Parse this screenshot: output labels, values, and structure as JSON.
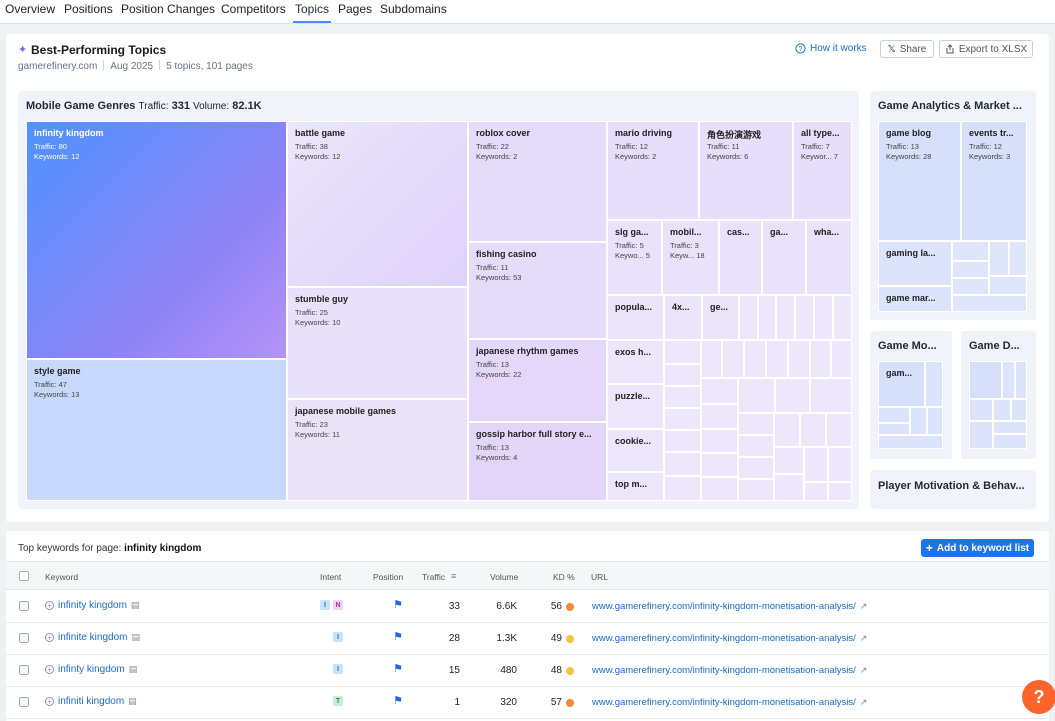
{
  "tabs": [
    "Overview",
    "Positions",
    "Position Changes",
    "Competitors",
    "Topics",
    "Pages",
    "Subdomains"
  ],
  "header": {
    "title": "Best-Performing Topics",
    "domain": "gamerefinery.com",
    "date": "Aug 2025",
    "summary": "5 topics, 101 pages",
    "how_label": "How it works",
    "share_label": "Share",
    "export_label": "Export to XLSX"
  },
  "main_panel": {
    "title": "Mobile Game Genres",
    "traffic_label": "Traffic:",
    "traffic": "331",
    "volume_label": "Volume:",
    "volume": "82.1K"
  },
  "treemap": [
    {
      "name": "infinity kingdom",
      "traffic": "Traffic: 80",
      "keywords": "Keywords: 12"
    },
    {
      "name": "style game",
      "traffic": "Traffic: 47",
      "keywords": "Keywords: 13"
    },
    {
      "name": "battle game",
      "traffic": "Traffic: 38",
      "keywords": "Keywords: 12"
    },
    {
      "name": "stumble guy",
      "traffic": "Traffic: 25",
      "keywords": "Keywords: 10"
    },
    {
      "name": "japanese mobile games",
      "traffic": "Traffic: 23",
      "keywords": "Keywords: 11"
    },
    {
      "name": "roblox cover",
      "traffic": "Traffic: 22",
      "keywords": "Keywords: 2"
    },
    {
      "name": "fishing casino",
      "traffic": "Traffic: 11",
      "keywords": "Keywords: 53"
    },
    {
      "name": "japanese rhythm games",
      "traffic": "Traffic: 13",
      "keywords": "Keywords: 22"
    },
    {
      "name": "gossip harbor full story e...",
      "traffic": "Traffic: 13",
      "keywords": "Keywords: 4"
    },
    {
      "name": "mario driving",
      "traffic": "Traffic: 12",
      "keywords": "Keywords: 2"
    },
    {
      "name": "角色扮演游戏",
      "traffic": "Traffic: 11",
      "keywords": "Keywords: 6"
    },
    {
      "name": "all type...",
      "traffic": "Traffic: 7",
      "keywords": "Keywor...  7"
    },
    {
      "name": "slg ga...",
      "traffic": "Traffic: 5",
      "keywords": "Keywo...  5"
    },
    {
      "name": "mobil...",
      "traffic": "Traffic: 3",
      "keywords": "Keyw...  18"
    },
    {
      "name": "cas...",
      "traffic": "",
      "keywords": ""
    },
    {
      "name": "ga...",
      "traffic": "",
      "keywords": ""
    },
    {
      "name": "wha...",
      "traffic": "",
      "keywords": ""
    },
    {
      "name": "popula...",
      "traffic": "",
      "keywords": ""
    },
    {
      "name": "4x...",
      "traffic": "",
      "keywords": ""
    },
    {
      "name": "ge...",
      "traffic": "",
      "keywords": ""
    },
    {
      "name": "exos h...",
      "traffic": "",
      "keywords": ""
    },
    {
      "name": "puzzle...",
      "traffic": "",
      "keywords": ""
    },
    {
      "name": "cookie...",
      "traffic": "",
      "keywords": ""
    },
    {
      "name": "top m...",
      "traffic": "",
      "keywords": ""
    }
  ],
  "side_panels": {
    "analytics": {
      "title": "Game Analytics & Market ...",
      "cells": [
        {
          "name": "game blog",
          "traffic": "Traffic: 13",
          "keywords": "Keywords: 28"
        },
        {
          "name": "events tr...",
          "traffic": "Traffic: 12",
          "keywords": "Keywords: 3"
        },
        {
          "name": "gaming la...",
          "traffic": "",
          "keywords": ""
        },
        {
          "name": "game mar...",
          "traffic": "",
          "keywords": ""
        }
      ]
    },
    "mo": {
      "title": "Game Mo...",
      "cell": "gam..."
    },
    "de": {
      "title": "Game D..."
    },
    "player": {
      "title": "Player Motivation & Behav..."
    }
  },
  "keywords": {
    "title_prefix": "Top keywords for page:",
    "page": "infinity kingdom",
    "add_label": "Add to keyword list",
    "columns": {
      "keyword": "Keyword",
      "intent": "Intent",
      "position": "Position",
      "traffic": "Traffic",
      "volume": "Volume",
      "kd": "KD %",
      "url": "URL"
    },
    "rows": [
      {
        "keyword": "infinity kingdom",
        "intents": [
          "I",
          "N"
        ],
        "traffic": "33",
        "volume": "6.6K",
        "kd": "56",
        "kd_color": "#f08a3e",
        "url": "www.gamerefinery.com/infinity-kingdom-monetisation-analysis/"
      },
      {
        "keyword": "infinite kingdom",
        "intents": [
          "I"
        ],
        "traffic": "28",
        "volume": "1.3K",
        "kd": "49",
        "kd_color": "#f3c343",
        "url": "www.gamerefinery.com/infinity-kingdom-monetisation-analysis/"
      },
      {
        "keyword": "infinty kingdom",
        "intents": [
          "I"
        ],
        "traffic": "15",
        "volume": "480",
        "kd": "48",
        "kd_color": "#f3c343",
        "url": "www.gamerefinery.com/infinity-kingdom-monetisation-analysis/"
      },
      {
        "keyword": "infiniti kingdom",
        "intents": [
          "T"
        ],
        "traffic": "1",
        "volume": "320",
        "kd": "57",
        "kd_color": "#f08a3e",
        "url": "www.gamerefinery.com/infinity-kingdom-monetisation-analysis/"
      }
    ]
  },
  "help_label": "?"
}
